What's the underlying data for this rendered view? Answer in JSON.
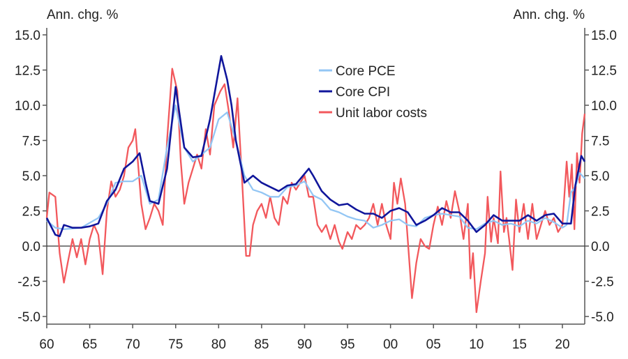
{
  "chart_data": {
    "type": "line",
    "ylabel_left": "Ann. chg. %",
    "ylabel_right": "Ann. chg. %",
    "xlim": [
      1960,
      2022.6
    ],
    "ylim": [
      -5.5,
      15.8
    ],
    "yticks": [
      15.0,
      12.5,
      10.0,
      7.5,
      5.0,
      2.5,
      0.0,
      -2.5,
      -5.0
    ],
    "ytick_labels": [
      "15.0",
      "12.5",
      "10.0",
      "7.5",
      "5.0",
      "2.5",
      "0.0",
      "-2.5",
      "-5.0"
    ],
    "xticks": [
      1960,
      1965,
      1970,
      1975,
      1980,
      1985,
      1990,
      1995,
      2000,
      2005,
      2010,
      2015,
      2020
    ],
    "xtick_labels": [
      "60",
      "65",
      "70",
      "75",
      "80",
      "85",
      "90",
      "95",
      "00",
      "05",
      "10",
      "15",
      "20"
    ],
    "grid": false,
    "legend_position": "top-center",
    "series": [
      {
        "name": "Core PCE",
        "color": "#93c6f4",
        "x": [
          1960,
          1961,
          1962,
          1964,
          1966,
          1967,
          1968,
          1969,
          1970,
          1971,
          1972,
          1973,
          1974,
          1975,
          1976,
          1977,
          1978,
          1979,
          1980,
          1981,
          1982,
          1983,
          1984,
          1985,
          1986,
          1987,
          1988,
          1989,
          1990,
          1991,
          1992,
          1993,
          1994,
          1995,
          1996,
          1997,
          1998,
          1999,
          2000,
          2001,
          2002,
          2003,
          2004,
          2005,
          2006,
          2007,
          2008,
          2009,
          2010,
          2011,
          2012,
          2013,
          2014,
          2015,
          2016,
          2017,
          2018,
          2019,
          2020,
          2020.5,
          2021,
          2021.5,
          2022,
          2022.6
        ],
        "y": [
          1.8,
          1.3,
          1.2,
          1.3,
          2.0,
          3.0,
          4.5,
          4.6,
          4.6,
          5.0,
          3.0,
          3.3,
          7.0,
          10.0,
          7.0,
          6.0,
          6.5,
          7.0,
          9.0,
          9.5,
          7.5,
          5.0,
          4.0,
          3.8,
          3.5,
          3.5,
          4.2,
          4.3,
          4.6,
          3.6,
          3.3,
          2.6,
          2.4,
          2.1,
          1.9,
          1.8,
          1.3,
          1.5,
          1.8,
          1.9,
          1.5,
          1.4,
          2.0,
          2.2,
          2.3,
          2.2,
          2.1,
          1.3,
          1.2,
          1.6,
          1.8,
          1.5,
          1.6,
          1.4,
          1.8,
          1.6,
          2.0,
          1.7,
          1.3,
          1.5,
          3.8,
          4.2,
          5.2,
          4.8
        ]
      },
      {
        "name": "Core CPI",
        "color": "#10169b",
        "x": [
          1960,
          1961,
          1961.5,
          1962,
          1963,
          1964,
          1965,
          1966,
          1967,
          1968,
          1969,
          1970,
          1970.8,
          1971.5,
          1972,
          1973,
          1974,
          1975,
          1976,
          1977,
          1978,
          1979,
          1980.3,
          1981,
          1981.5,
          1982,
          1983,
          1984,
          1985,
          1986,
          1987,
          1988,
          1989,
          1990.5,
          1991,
          1992,
          1993,
          1994,
          1995,
          1996,
          1997,
          1998,
          1999,
          2000,
          2001,
          2002,
          2003,
          2004,
          2005,
          2006,
          2007,
          2008,
          2009,
          2010,
          2011,
          2012,
          2013,
          2014,
          2015,
          2016,
          2017,
          2018,
          2019,
          2020,
          2021,
          2021.5,
          2022.2,
          2022.6
        ],
        "y": [
          2.0,
          0.8,
          0.7,
          1.5,
          1.3,
          1.3,
          1.4,
          1.6,
          3.2,
          4.0,
          5.5,
          6.0,
          6.6,
          4.5,
          3.2,
          3.0,
          5.5,
          11.3,
          7.0,
          6.3,
          6.4,
          9.0,
          13.5,
          11.8,
          10.0,
          7.5,
          4.5,
          5.0,
          4.5,
          4.2,
          3.9,
          4.3,
          4.4,
          5.5,
          5.0,
          3.9,
          3.3,
          2.9,
          3.0,
          2.6,
          2.3,
          2.3,
          2.0,
          2.5,
          2.7,
          2.4,
          1.5,
          1.8,
          2.2,
          2.7,
          2.4,
          2.4,
          1.8,
          1.0,
          1.5,
          2.2,
          1.8,
          1.8,
          1.8,
          2.2,
          1.8,
          2.2,
          2.3,
          1.6,
          1.6,
          4.3,
          6.4,
          6.0
        ]
      },
      {
        "name": "Unit labor costs",
        "color": "#f2585c",
        "x": [
          1960,
          1960.3,
          1961,
          1961.5,
          1962,
          1962.5,
          1963,
          1963.5,
          1964,
          1964.5,
          1965,
          1965.5,
          1966,
          1966.5,
          1967,
          1967.5,
          1968,
          1968.5,
          1969,
          1969.5,
          1970,
          1970.3,
          1970.6,
          1971,
          1971.5,
          1972,
          1972.5,
          1973,
          1973.5,
          1974,
          1974.6,
          1975.2,
          1975.6,
          1976,
          1976.5,
          1977,
          1977.5,
          1978,
          1978.5,
          1979,
          1979.5,
          1980.2,
          1980.7,
          1981.2,
          1981.7,
          1982.2,
          1982.7,
          1983.2,
          1983.6,
          1984,
          1984.5,
          1985,
          1985.5,
          1986,
          1986.5,
          1987,
          1987.5,
          1988,
          1988.5,
          1989,
          1989.5,
          1990,
          1990.5,
          1991,
          1991.5,
          1992,
          1992.5,
          1993,
          1993.5,
          1994,
          1994.4,
          1995,
          1995.5,
          1996,
          1996.5,
          1997,
          1997.5,
          1998,
          1998.5,
          1999,
          1999.5,
          2000,
          2000.4,
          2000.8,
          2001.2,
          2001.7,
          2002,
          2002.5,
          2003,
          2003.5,
          2004,
          2004.5,
          2005,
          2005.5,
          2006,
          2006.5,
          2007,
          2007.5,
          2008,
          2008.5,
          2009,
          2009.3,
          2009.6,
          2010,
          2010.5,
          2011,
          2011.3,
          2011.7,
          2012,
          2012.5,
          2012.8,
          2013.2,
          2013.5,
          2013.8,
          2014.2,
          2014.6,
          2015,
          2015.5,
          2016,
          2016.5,
          2017,
          2017.5,
          2018,
          2018.5,
          2019,
          2019.5,
          2020,
          2020.5,
          2020.8,
          2021.1,
          2021.4,
          2021.7,
          2022,
          2022.3,
          2022.6
        ],
        "y": [
          2.0,
          3.8,
          3.5,
          -0.5,
          -2.6,
          -1.0,
          0.5,
          -0.8,
          0.5,
          -1.3,
          0.5,
          1.5,
          0.8,
          -2.0,
          2.5,
          4.6,
          3.5,
          4.0,
          5.0,
          7.0,
          7.5,
          8.3,
          6.0,
          3.0,
          1.2,
          2.0,
          3.0,
          2.5,
          1.5,
          7.5,
          12.6,
          11.0,
          6.0,
          3.0,
          4.5,
          5.5,
          6.5,
          5.5,
          8.3,
          6.5,
          10.0,
          11.0,
          11.5,
          9.5,
          7.0,
          10.5,
          5.0,
          -0.7,
          -0.7,
          1.5,
          2.5,
          3.0,
          2.0,
          3.5,
          2.0,
          1.5,
          3.5,
          3.0,
          4.5,
          4.0,
          4.5,
          5.0,
          3.5,
          3.5,
          1.5,
          1.0,
          1.5,
          0.5,
          1.5,
          0.3,
          -0.2,
          1.0,
          0.5,
          1.5,
          1.2,
          1.5,
          2.0,
          3.0,
          1.5,
          3.0,
          1.5,
          0.5,
          4.5,
          3.0,
          4.8,
          3.0,
          0.5,
          -3.7,
          -1.2,
          0.5,
          0.0,
          -0.2,
          1.5,
          2.8,
          1.5,
          3.2,
          2.0,
          3.9,
          2.5,
          0.5,
          3.0,
          -2.3,
          -0.5,
          -4.7,
          -2.5,
          -0.5,
          3.5,
          0.3,
          2.0,
          0.2,
          5.3,
          1.0,
          2.0,
          0.5,
          -1.7,
          3.3,
          1.0,
          3.0,
          0.5,
          3.0,
          0.5,
          1.5,
          2.5,
          1.5,
          2.0,
          1.0,
          1.5,
          6.0,
          3.5,
          5.8,
          1.2,
          6.6,
          4.5,
          8.0,
          9.4
        ]
      }
    ]
  }
}
